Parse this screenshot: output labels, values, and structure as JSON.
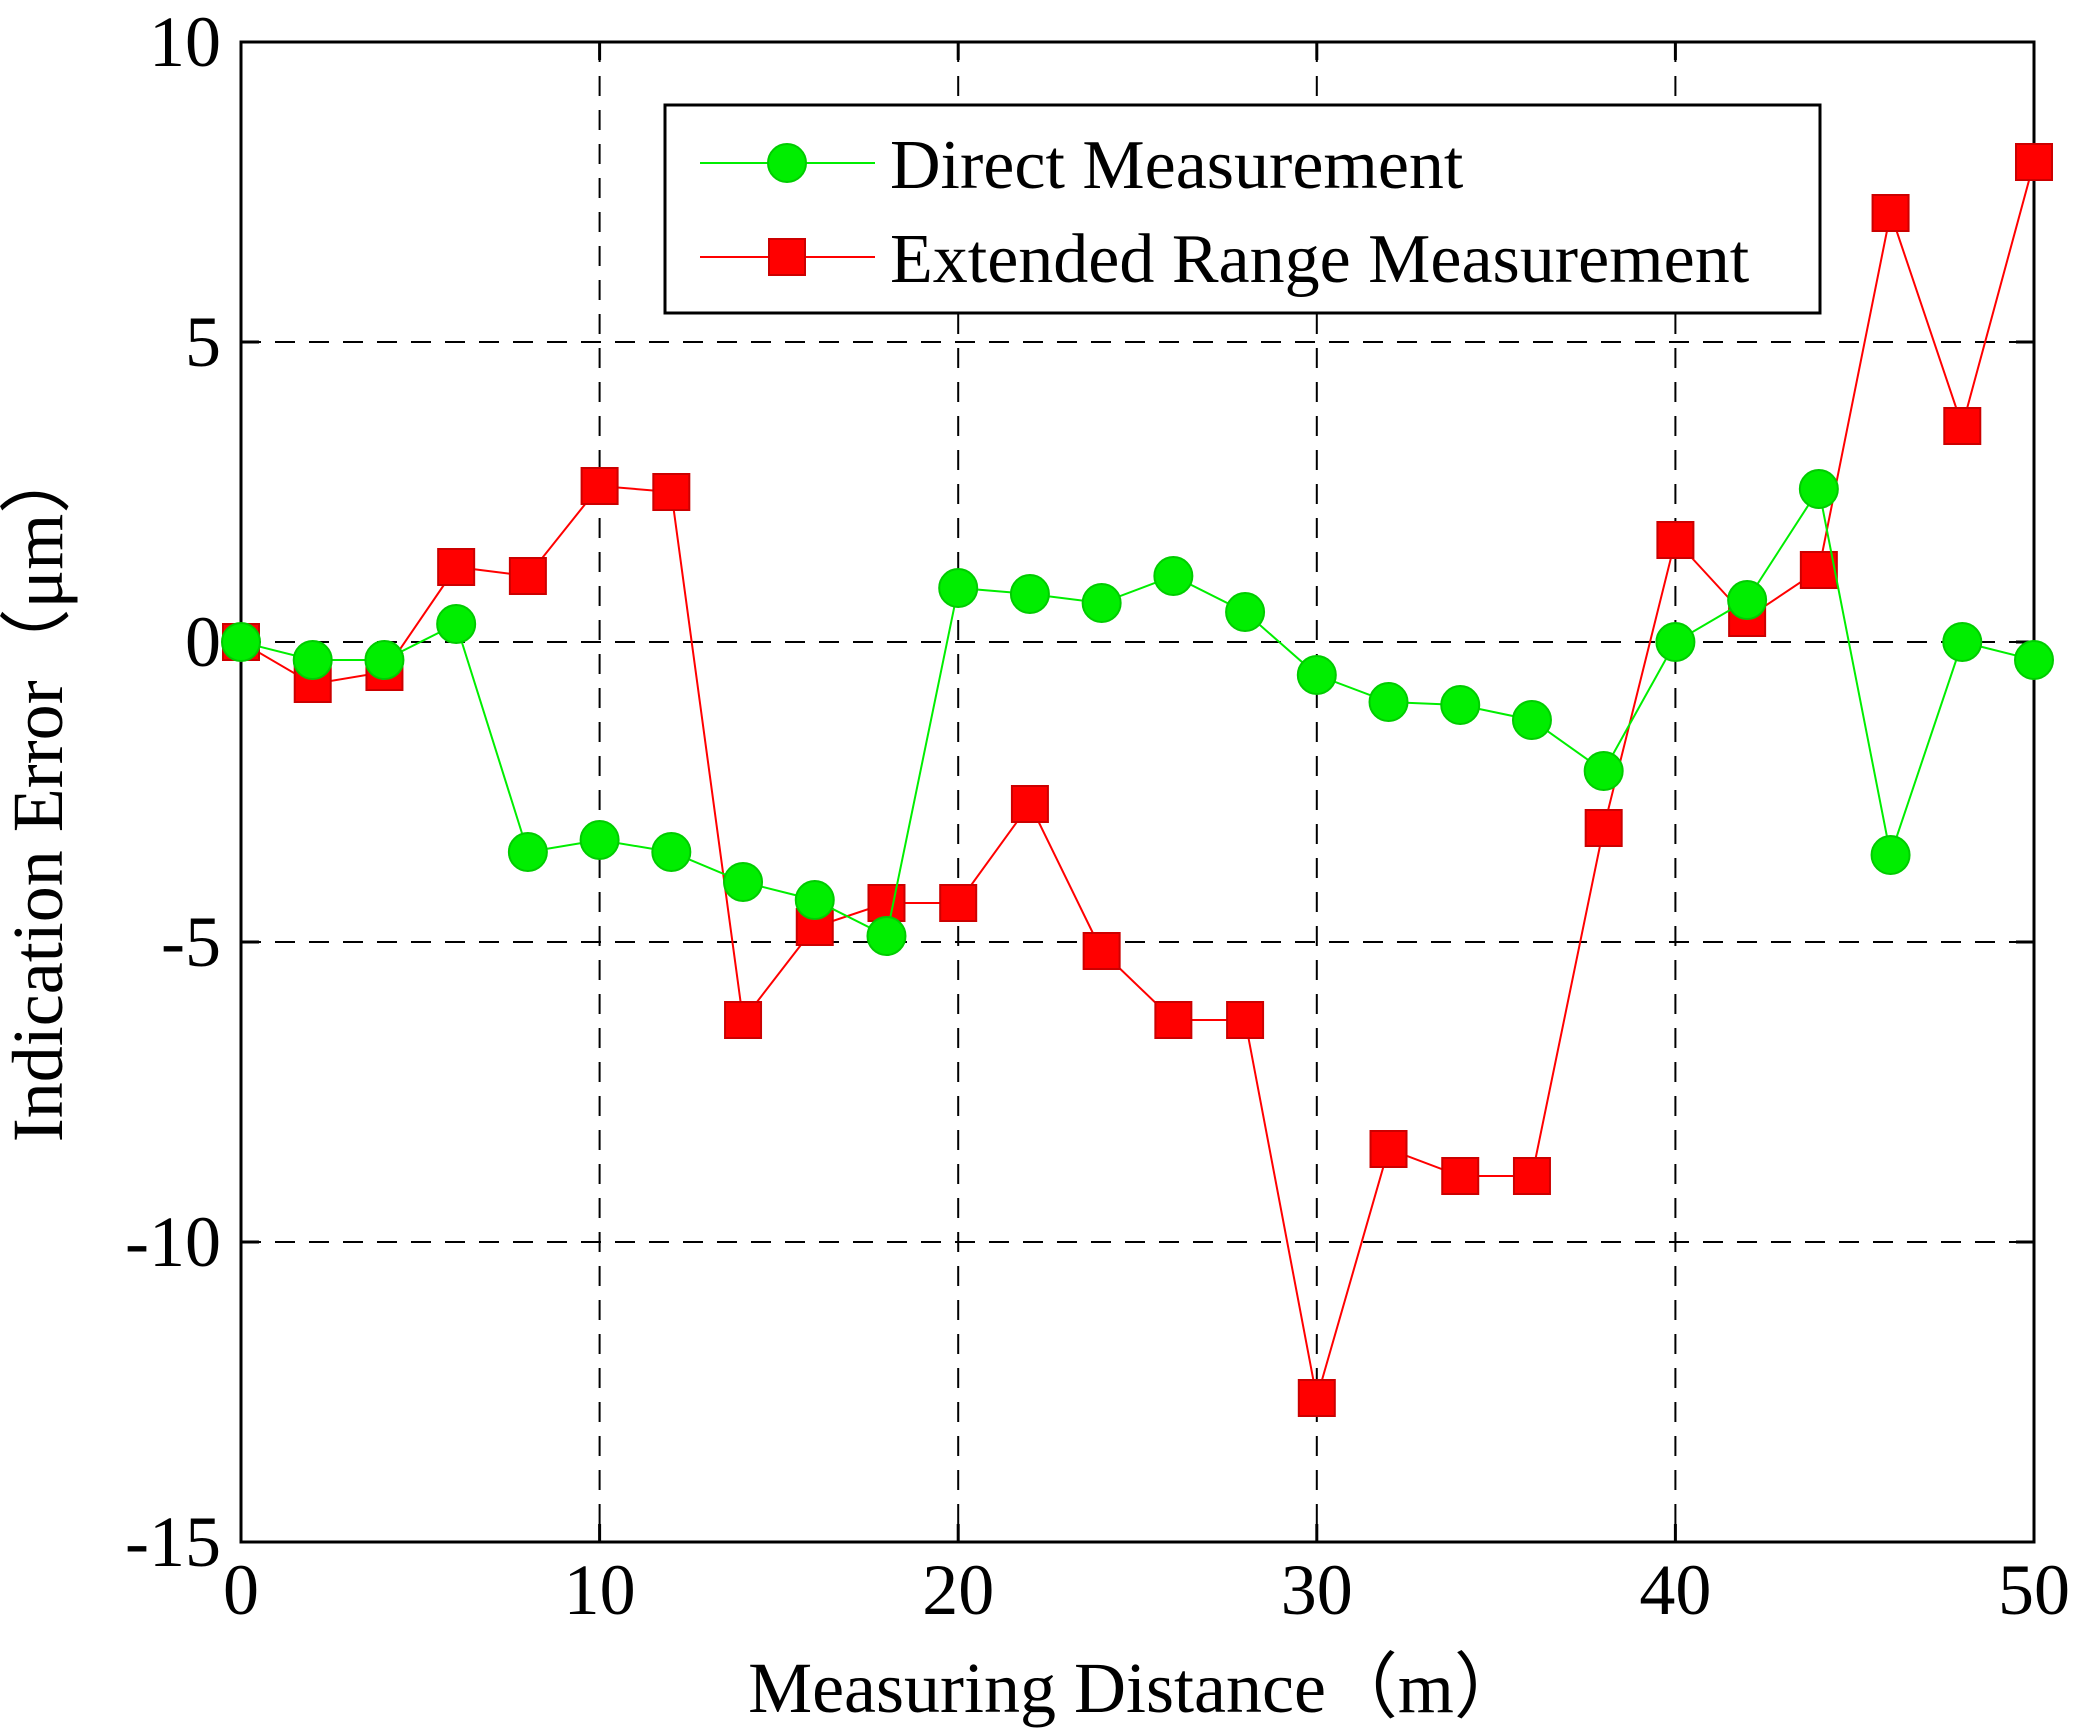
{
  "chart_data": {
    "type": "line",
    "title": "",
    "xlabel": "Measuring Distance（m）",
    "ylabel": "Indication Error（μm）",
    "xlim": [
      0,
      50
    ],
    "ylim": [
      -15,
      10
    ],
    "xticks": [
      0,
      10,
      20,
      30,
      40,
      50
    ],
    "xtick_labels": [
      "0",
      "10",
      "20",
      "30",
      "40",
      "50"
    ],
    "yticks": [
      10,
      5,
      0,
      -5,
      -10,
      -15
    ],
    "ytick_labels": [
      "10",
      "5",
      "0",
      "-5",
      "-10",
      "-15"
    ],
    "grid": true,
    "legend_position": "top-right",
    "x": [
      0,
      2,
      4,
      6,
      8,
      10,
      12,
      14,
      16,
      18,
      20,
      22,
      24,
      26,
      28,
      30,
      32,
      34,
      36,
      38,
      40,
      42,
      44,
      46,
      48,
      50
    ],
    "series": [
      {
        "name": "Direct Measurement",
        "color": "#00ee00",
        "marker": "circle",
        "values": [
          0,
          -0.3,
          -0.3,
          0.3,
          -3.5,
          -3.3,
          -3.5,
          -4.0,
          -4.3,
          -4.9,
          0.9,
          0.8,
          0.65,
          1.1,
          0.5,
          -0.55,
          -1.0,
          -1.05,
          -1.3,
          -2.15,
          0,
          0.7,
          2.55,
          -3.55,
          0,
          -0.3
        ]
      },
      {
        "name": "Extended Range Measurement",
        "color": "#ff0000",
        "marker": "square",
        "values": [
          0,
          -0.7,
          -0.5,
          1.25,
          1.1,
          2.6,
          2.5,
          -6.3,
          -4.75,
          -4.35,
          -4.35,
          -2.7,
          -5.15,
          -6.3,
          -6.3,
          -12.6,
          -8.45,
          -8.9,
          -8.9,
          -3.1,
          1.7,
          0.4,
          1.2,
          7.15,
          3.6,
          8.0
        ]
      }
    ]
  }
}
